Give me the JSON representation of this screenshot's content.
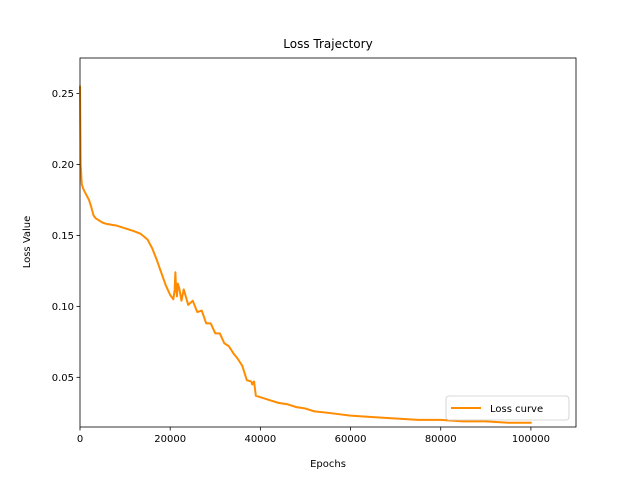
{
  "chart_data": {
    "type": "line",
    "title": "Loss Trajectory",
    "xlabel": "Epochs",
    "ylabel": "Loss Value",
    "xlim": [
      0,
      110000
    ],
    "ylim": [
      0.015,
      0.275
    ],
    "x_ticks": [
      0,
      20000,
      40000,
      60000,
      80000,
      100000
    ],
    "x_tick_labels": [
      "0",
      "20000",
      "40000",
      "60000",
      "80000",
      "100000"
    ],
    "y_ticks": [
      0.05,
      0.1,
      0.15,
      0.2,
      0.25
    ],
    "y_tick_labels": [
      "0.05",
      "0.10",
      "0.15",
      "0.20",
      "0.25"
    ],
    "grid": false,
    "legend_position": "bottom-right",
    "line_color": "#ff8c00",
    "series": [
      {
        "name": "Loss curve",
        "x": [
          0,
          150,
          400,
          700,
          1000,
          1500,
          2000,
          2500,
          3000,
          3500,
          4000,
          5000,
          6000,
          8000,
          10000,
          12000,
          13500,
          15000,
          16000,
          17000,
          18000,
          19000,
          20000,
          20700,
          21000,
          21150,
          21300,
          21500,
          21700,
          22000,
          22500,
          23000,
          24000,
          25000,
          26000,
          27000,
          28000,
          29000,
          30000,
          31000,
          32000,
          33000,
          34000,
          35000,
          36000,
          37000,
          38000,
          38200,
          38600,
          39000,
          40000,
          42000,
          44000,
          46000,
          48000,
          50000,
          52000,
          55000,
          60000,
          65000,
          70000,
          75000,
          80000,
          85000,
          90000,
          95000,
          100000
        ],
        "y": [
          0.255,
          0.2,
          0.186,
          0.183,
          0.181,
          0.178,
          0.175,
          0.17,
          0.164,
          0.162,
          0.161,
          0.159,
          0.158,
          0.157,
          0.155,
          0.153,
          0.151,
          0.147,
          0.141,
          0.133,
          0.124,
          0.115,
          0.108,
          0.105,
          0.112,
          0.124,
          0.113,
          0.107,
          0.116,
          0.113,
          0.104,
          0.112,
          0.101,
          0.104,
          0.096,
          0.097,
          0.088,
          0.088,
          0.081,
          0.081,
          0.074,
          0.072,
          0.067,
          0.063,
          0.058,
          0.048,
          0.047,
          0.045,
          0.047,
          0.037,
          0.036,
          0.034,
          0.032,
          0.031,
          0.029,
          0.028,
          0.026,
          0.025,
          0.023,
          0.022,
          0.021,
          0.02,
          0.02,
          0.019,
          0.019,
          0.018,
          0.018
        ]
      }
    ]
  }
}
